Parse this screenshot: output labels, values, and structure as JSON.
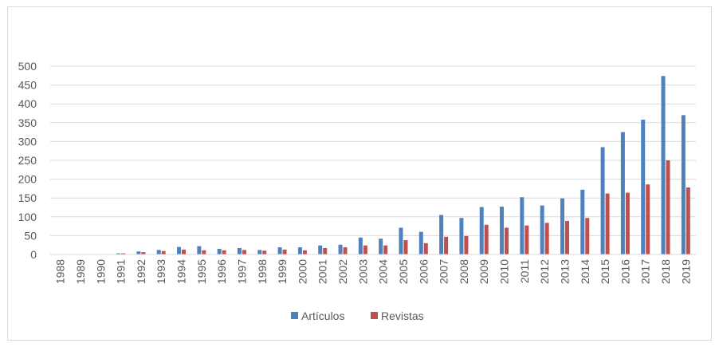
{
  "chart_data": {
    "type": "bar",
    "categories": [
      "1988",
      "1989",
      "1990",
      "1991",
      "1992",
      "1993",
      "1994",
      "1995",
      "1996",
      "1997",
      "1998",
      "1999",
      "2000",
      "2001",
      "2002",
      "2003",
      "2004",
      "2005",
      "2006",
      "2007",
      "2008",
      "2009",
      "2010",
      "2011",
      "2012",
      "2013",
      "2014",
      "2015",
      "2016",
      "2017",
      "2018",
      "2019"
    ],
    "series": [
      {
        "name": "Artículos",
        "color": "#4f81bd",
        "values": [
          0,
          0,
          0,
          3,
          8,
          12,
          20,
          22,
          15,
          17,
          12,
          19,
          19,
          24,
          26,
          45,
          42,
          71,
          60,
          105,
          97,
          126,
          127,
          152,
          130,
          149,
          172,
          285,
          325,
          358,
          474,
          370
        ]
      },
      {
        "name": "Revistas",
        "color": "#c0504d",
        "values": [
          0,
          0,
          0,
          3,
          6,
          9,
          13,
          11,
          11,
          12,
          10,
          13,
          11,
          17,
          19,
          24,
          24,
          38,
          30,
          47,
          49,
          79,
          71,
          77,
          84,
          89,
          97,
          162,
          164,
          186,
          250,
          178
        ]
      }
    ],
    "ylim": [
      0,
      500
    ],
    "yticks": [
      0,
      50,
      100,
      150,
      200,
      250,
      300,
      350,
      400,
      450,
      500
    ],
    "grid": true,
    "legend": "bottom"
  }
}
